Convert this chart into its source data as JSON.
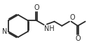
{
  "bg_color": "#ffffff",
  "line_color": "#2a2a2a",
  "text_color": "#2a2a2a",
  "line_width": 1.3,
  "font_size": 6.5,
  "figsize": [
    1.57,
    0.74
  ],
  "xlim": [
    0,
    10.2
  ],
  "ylim": [
    0.5,
    5.2
  ]
}
